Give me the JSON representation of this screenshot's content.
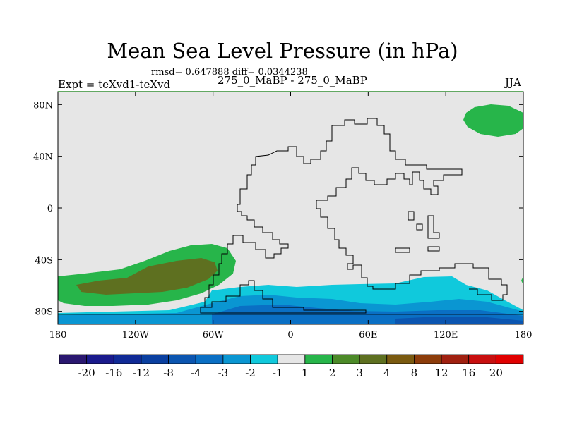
{
  "title": "Mean Sea Level Pressure (in hPa)",
  "stats": "rmsd= 0.647888 diff= 0.0344238",
  "subtitle": "275_0_MaBP - 275_0_MaBP",
  "expt": "Expt = teXvd1-teXvd",
  "season": "JJA",
  "map": {
    "projection": "cylindrical-equidistant",
    "lon_range": [
      -180,
      180
    ],
    "lat_range": [
      -90,
      90
    ],
    "lon_ticks": [
      {
        "value": -180,
        "label": "180"
      },
      {
        "value": -120,
        "label": "120W"
      },
      {
        "value": -60,
        "label": "60W"
      },
      {
        "value": 0,
        "label": "0"
      },
      {
        "value": 60,
        "label": "60E"
      },
      {
        "value": 120,
        "label": "120E"
      },
      {
        "value": 180,
        "label": "180"
      }
    ],
    "lat_ticks": [
      {
        "value": 80,
        "label": "80N"
      },
      {
        "value": 40,
        "label": "40N"
      },
      {
        "value": 0,
        "label": "0"
      },
      {
        "value": -40,
        "label": "40S"
      },
      {
        "value": -80,
        "label": "80S"
      }
    ]
  },
  "colorbar": {
    "labels": [
      "-20",
      "-16",
      "-12",
      "-8",
      "-4",
      "-3",
      "-2",
      "-1",
      "1",
      "2",
      "3",
      "4",
      "8",
      "12",
      "16",
      "20"
    ],
    "colors": [
      "#2a1770",
      "#1a1a8c",
      "#102a96",
      "#0a3fa0",
      "#0b55b0",
      "#0a6fc4",
      "#0a96d2",
      "#10c9dc",
      "#e6e6e6",
      "#27b54a",
      "#4c8a28",
      "#5e7020",
      "#7a5a10",
      "#8c3c0a",
      "#a02010",
      "#c80f0f",
      "#e00000"
    ]
  },
  "regions": [
    {
      "name": "north-pacific-arctic-positive",
      "level": "1 to 2",
      "color": "#27b54a"
    },
    {
      "name": "south-pacific-positive-outer",
      "level": "1 to 2",
      "color": "#27b54a"
    },
    {
      "name": "south-pacific-positive-inner",
      "level": "3 to 4",
      "color": "#5e7020"
    },
    {
      "name": "southern-ocean-negative-light",
      "level": "-2 to -1",
      "color": "#10c9dc"
    },
    {
      "name": "southern-ocean-negative-medium",
      "level": "-3 to -2",
      "color": "#0a96d2"
    },
    {
      "name": "antarctic-negative-strong",
      "level": "-4 to -3",
      "color": "#0a6fc4"
    }
  ]
}
